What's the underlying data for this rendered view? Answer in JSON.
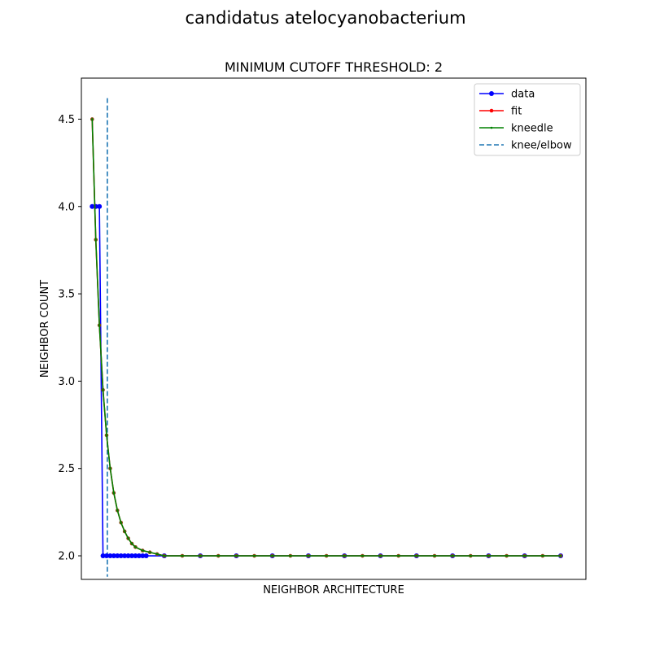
{
  "figure": {
    "suptitle": "candidatus atelocyanobacterium"
  },
  "chart_data": {
    "type": "line",
    "title": "MINIMUM CUTOFF THRESHOLD: 2",
    "xlabel": "NEIGHBOR ARCHITECTURE",
    "ylabel": "NEIGHBOR COUNT",
    "xlim": [
      -3,
      137
    ],
    "ylim": [
      1.865,
      4.735
    ],
    "yticks": [
      2.0,
      2.5,
      3.0,
      3.5,
      4.0,
      4.5
    ],
    "ytick_labels": [
      "2.0",
      "2.5",
      "3.0",
      "3.5",
      "4.0",
      "4.5"
    ],
    "grid": false,
    "legend_position": "upper right",
    "series": [
      {
        "name": "data",
        "color": "#0000ff",
        "marker": "circle",
        "x": [
          0,
          1,
          2,
          3,
          4,
          5,
          6,
          7,
          8,
          9,
          10,
          11,
          12,
          13,
          14,
          15,
          20,
          30,
          40,
          50,
          60,
          70,
          80,
          90,
          100,
          110,
          120,
          130
        ],
        "y": [
          4.0,
          4.0,
          4.0,
          2.0,
          2.0,
          2.0,
          2.0,
          2.0,
          2.0,
          2.0,
          2.0,
          2.0,
          2.0,
          2.0,
          2.0,
          2.0,
          2.0,
          2.0,
          2.0,
          2.0,
          2.0,
          2.0,
          2.0,
          2.0,
          2.0,
          2.0,
          2.0,
          2.0
        ]
      },
      {
        "name": "fit",
        "color": "#ff0000",
        "marker": "dot",
        "x": [
          0,
          1,
          2,
          3,
          4,
          5,
          6,
          7,
          8,
          9,
          10,
          11,
          12,
          14,
          16,
          18,
          20,
          25,
          30,
          35,
          40,
          45,
          50,
          55,
          60,
          65,
          70,
          75,
          80,
          85,
          90,
          95,
          100,
          105,
          110,
          115,
          120,
          125,
          130
        ],
        "y": [
          4.5,
          3.81,
          3.32,
          2.95,
          2.69,
          2.5,
          2.36,
          2.26,
          2.19,
          2.14,
          2.1,
          2.07,
          2.05,
          2.03,
          2.02,
          2.01,
          2.0,
          2.0,
          2.0,
          2.0,
          2.0,
          2.0,
          2.0,
          2.0,
          2.0,
          2.0,
          2.0,
          2.0,
          2.0,
          2.0,
          2.0,
          2.0,
          2.0,
          2.0,
          2.0,
          2.0,
          2.0,
          2.0,
          2.0
        ]
      },
      {
        "name": "kneedle",
        "color": "#008000",
        "marker": "small-dot",
        "x": [
          0,
          1,
          2,
          3,
          4,
          5,
          6,
          7,
          8,
          9,
          10,
          11,
          12,
          14,
          16,
          18,
          20,
          25,
          30,
          35,
          40,
          45,
          50,
          55,
          60,
          65,
          70,
          75,
          80,
          85,
          90,
          95,
          100,
          105,
          110,
          115,
          120,
          125,
          130
        ],
        "y": [
          4.5,
          3.81,
          3.32,
          2.95,
          2.69,
          2.5,
          2.36,
          2.26,
          2.19,
          2.14,
          2.1,
          2.07,
          2.05,
          2.03,
          2.02,
          2.01,
          2.0,
          2.0,
          2.0,
          2.0,
          2.0,
          2.0,
          2.0,
          2.0,
          2.0,
          2.0,
          2.0,
          2.0,
          2.0,
          2.0,
          2.0,
          2.0,
          2.0,
          2.0,
          2.0,
          2.0,
          2.0,
          2.0,
          2.0
        ]
      }
    ],
    "vlines": [
      {
        "name": "knee/elbow",
        "x": 4.2,
        "color": "#1f77b4",
        "style": "dashed"
      }
    ]
  }
}
